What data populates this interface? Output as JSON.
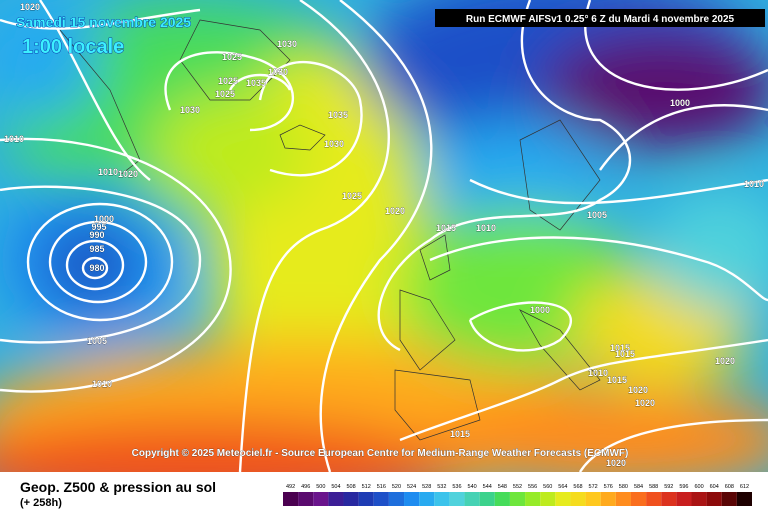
{
  "header": {
    "date": "Samedi 15 novembre 2025",
    "time": "1:00 locale",
    "run": "Run ECMWF AIFSv1 0.25° 6 Z du Mardi 4 novembre 2025"
  },
  "copyright": "Copyright © 2025 Meteociel.fr - Source European Centre for Medium-Range Weather Forecasts (ECMWF)",
  "caption": {
    "title": "Geop. Z500 & pression au sol",
    "lead": "(+ 258h)"
  },
  "isobar_labels": [
    1020,
    1025,
    1030,
    1030,
    1025,
    1035,
    1025,
    1030,
    1035,
    1030,
    1010,
    1010,
    1020,
    1025,
    1020,
    1015,
    1010,
    1000,
    995,
    990,
    985,
    980,
    1005,
    1010,
    1000,
    1010,
    1005,
    1000,
    1015,
    1015,
    1010,
    1015,
    1020,
    1020,
    1020,
    1015,
    1020
  ],
  "legend": {
    "values": [
      492,
      496,
      500,
      504,
      508,
      512,
      516,
      520,
      524,
      528,
      532,
      536,
      540,
      544,
      548,
      552,
      556,
      560,
      564,
      568,
      572,
      576,
      580,
      584,
      588,
      592,
      596,
      600,
      604,
      608,
      612
    ],
    "colors": [
      "#4b0050",
      "#5a0a6e",
      "#6a148c",
      "#3c1e96",
      "#2828a0",
      "#1e3cb4",
      "#1e50c8",
      "#1e6edc",
      "#1e8cf0",
      "#28aaf0",
      "#3cc3eb",
      "#50d2dc",
      "#46d2b4",
      "#3cd28c",
      "#46dc5a",
      "#6ee63c",
      "#96eb28",
      "#beeb1e",
      "#e6eb1e",
      "#f5dc1e",
      "#ffc81e",
      "#ffaa1e",
      "#ff8c1e",
      "#fa6e1e",
      "#f0501e",
      "#dc321e",
      "#c81e1e",
      "#aa1414",
      "#8c0a0a",
      "#5a0505",
      "#1e0000"
    ]
  }
}
